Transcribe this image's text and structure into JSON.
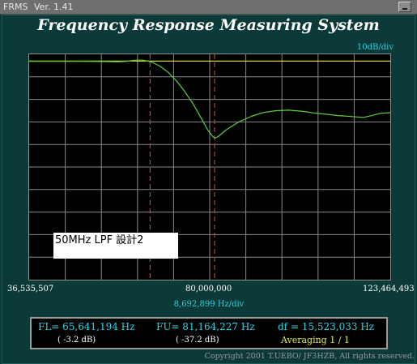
{
  "window": {
    "app_name": "FRMS",
    "version": "Ver. 1.41"
  },
  "header": {
    "title": "Frequency Response Measuring System",
    "y_scale": "10dB/div"
  },
  "annotation": "50MHz  LPF  設計2",
  "x_axis": {
    "left_label": "36,535,507",
    "center_label": "80,000,000",
    "right_label": "123,464,493",
    "per_division": "8,692,899  Hz/div"
  },
  "readout": {
    "fl": "FL= 65,641,194  Hz",
    "fl_db": "( -3.2 dB)",
    "fu": "FU= 81,164,227  Hz",
    "fu_db": "( -37.2 dB)",
    "df": "df = 15,523,033  Hz",
    "averaging": "Averaging   1 / 1"
  },
  "copyright": "Copyright 2001 T.UEBO/ JF3HZB, All rights reserved.",
  "colors": {
    "trace": "#5fcf3a",
    "reference_line": "#e8e85a",
    "marker": "#e0503a",
    "grid": "#8a8a8a",
    "label_cyan": "#29d4e8"
  },
  "chart_data": {
    "type": "line",
    "x_range": [
      36535507,
      123464493
    ],
    "y_range_db": [
      -100,
      0
    ],
    "y_per_div_db": 10,
    "x_per_div_hz": 8692899,
    "grid": true,
    "reference_level_db": -3,
    "markers": [
      {
        "freq": 65641194,
        "db": -3.2
      },
      {
        "freq": 81164227,
        "db": -37.2
      }
    ],
    "series": [
      {
        "points": [
          [
            36535507,
            -3.1
          ],
          [
            40000000,
            -3.1
          ],
          [
            45000000,
            -3.1
          ],
          [
            50000000,
            -3.1
          ],
          [
            55000000,
            -3.2
          ],
          [
            58000000,
            -3.3
          ],
          [
            60000000,
            -3.1
          ],
          [
            62000000,
            -2.6
          ],
          [
            64000000,
            -2.6
          ],
          [
            66000000,
            -3.4
          ],
          [
            68000000,
            -5.2
          ],
          [
            70000000,
            -8.0
          ],
          [
            72000000,
            -11.8
          ],
          [
            74000000,
            -16.5
          ],
          [
            76000000,
            -22.0
          ],
          [
            78000000,
            -28.5
          ],
          [
            79500000,
            -33.5
          ],
          [
            80800000,
            -36.6
          ],
          [
            81300000,
            -37.2
          ],
          [
            82000000,
            -36.5
          ],
          [
            84000000,
            -33.5
          ],
          [
            87000000,
            -30.0
          ],
          [
            90000000,
            -27.5
          ],
          [
            93000000,
            -25.8
          ],
          [
            96000000,
            -25.0
          ],
          [
            99000000,
            -24.8
          ],
          [
            102000000,
            -25.2
          ],
          [
            105000000,
            -26.0
          ],
          [
            108000000,
            -26.6
          ],
          [
            111000000,
            -27.2
          ],
          [
            114000000,
            -27.6
          ],
          [
            117000000,
            -28.0
          ],
          [
            119000000,
            -27.2
          ],
          [
            121000000,
            -26.2
          ],
          [
            123464493,
            -25.9
          ]
        ]
      }
    ]
  }
}
